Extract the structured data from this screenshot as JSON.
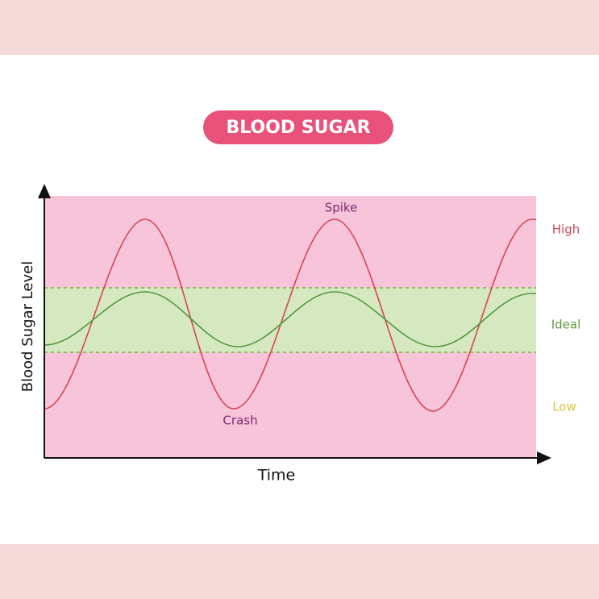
{
  "title": "BLOOD SUGAR",
  "axes": {
    "y": "Blood Sugar Level",
    "x": "Time"
  },
  "annotations": {
    "peak": "Spike",
    "trough": "Crash"
  },
  "zones": [
    "High",
    "Ideal",
    "Low"
  ]
}
